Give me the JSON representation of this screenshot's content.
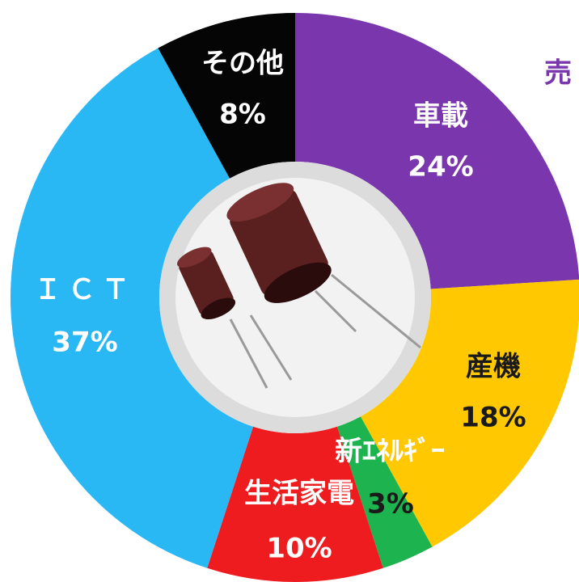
{
  "chart_data": {
    "type": "pie",
    "title": "売",
    "categories": [
      "車載",
      "産機",
      "新ｴﾈﾙｷﾞｰ",
      "生活家電",
      "ＩＣＴ",
      "その他"
    ],
    "values": [
      24,
      18,
      3,
      10,
      37,
      8
    ],
    "value_labels": [
      "24%",
      "18%",
      "3%",
      "10%",
      "37%",
      "8%"
    ],
    "colors": [
      "#7a36ad",
      "#ffc800",
      "#1db34f",
      "#ee1b1f",
      "#29b8f4",
      "#050505"
    ],
    "name_colors": [
      "#ffffff",
      "#1a1a1a",
      "#ffffff",
      "#ffffff",
      "#ffffff",
      "#ffffff"
    ],
    "value_label_colors": [
      "#ffffff",
      "#1a1a1a",
      "#1a1a1a",
      "#ffffff",
      "#ffffff",
      "#ffffff"
    ],
    "hole": true
  }
}
